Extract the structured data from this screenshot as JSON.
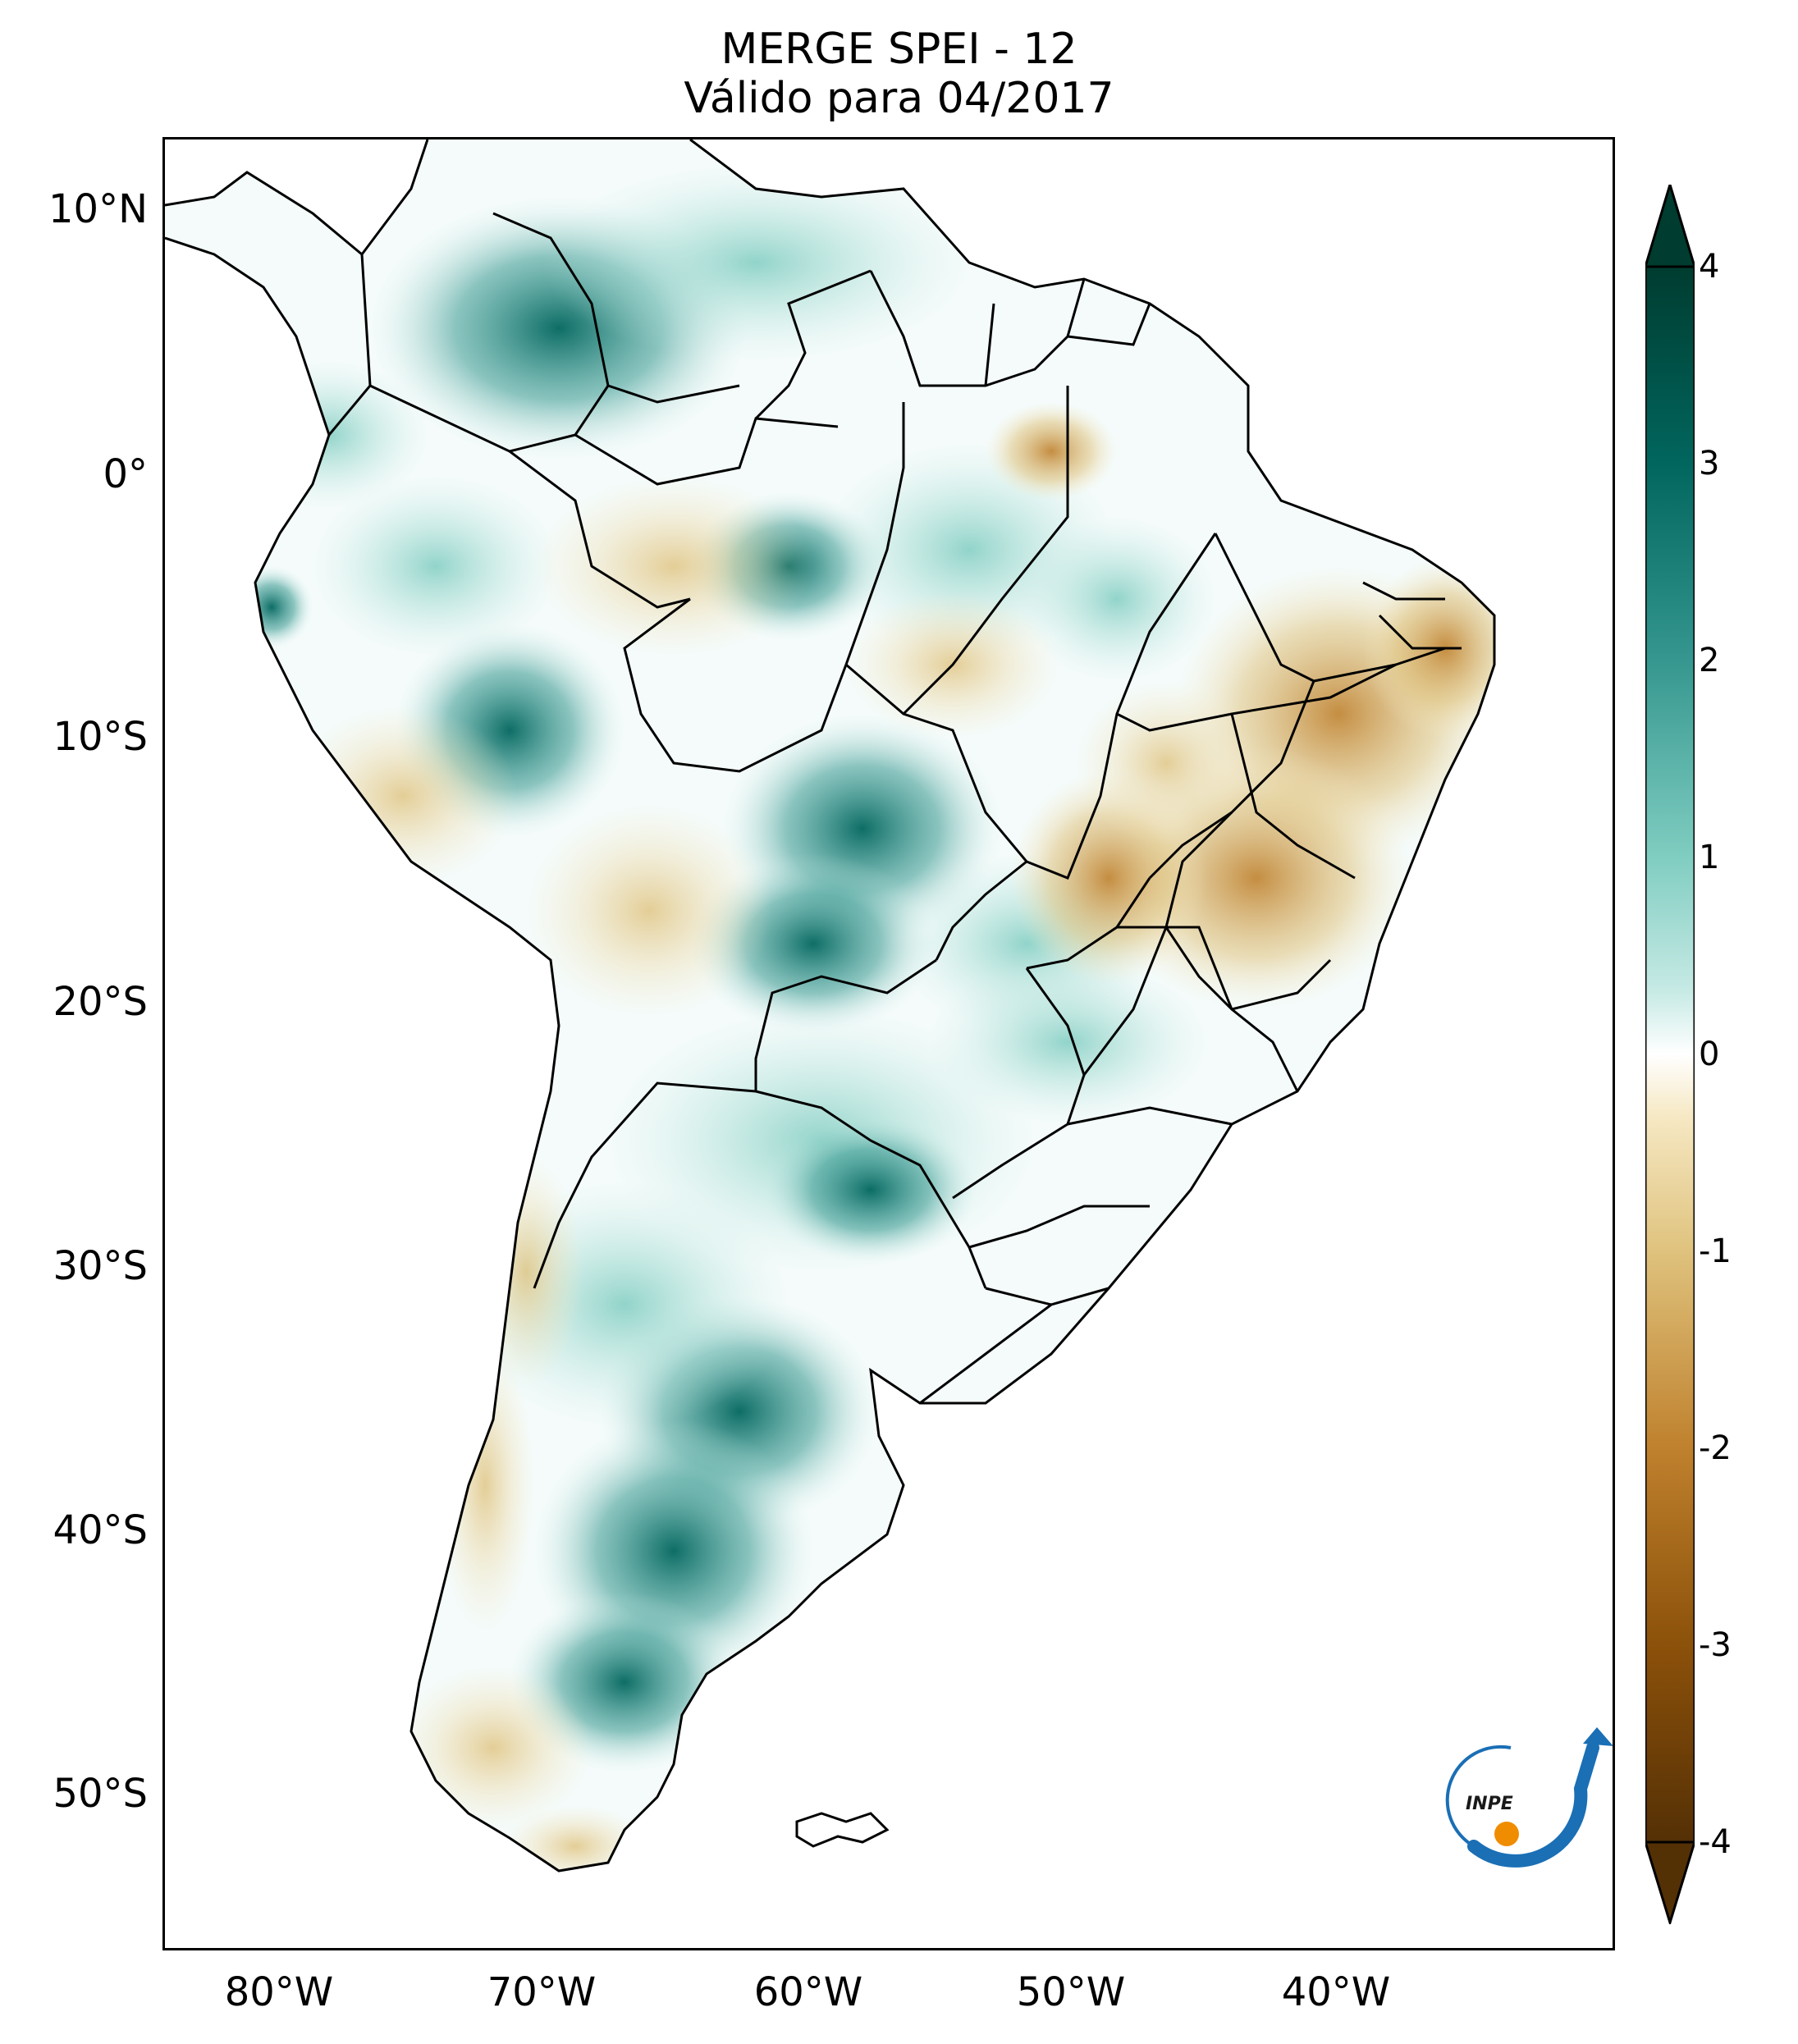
{
  "title": {
    "line1": "MERGE   SPEI - 12",
    "line2": "Válido para 04/2017"
  },
  "axes": {
    "lat_labels": [
      "10°N",
      "0°",
      "10°S",
      "20°S",
      "30°S",
      "40°S",
      "50°S"
    ],
    "lon_labels": [
      "80°W",
      "70°W",
      "60°W",
      "50°W",
      "40°W"
    ]
  },
  "colorbar": {
    "ticks": [
      "4",
      "3",
      "2",
      "1",
      "0",
      "-1",
      "-2",
      "-3",
      "-4"
    ],
    "range": [
      -4,
      4
    ],
    "extend": "both",
    "colors": {
      "dry_extreme": "#543005",
      "dry_strong": "#8c510a",
      "dry": "#bf812d",
      "dry_light": "#dfc27d",
      "dry_faint": "#f6e8c3",
      "neutral": "#ffffff",
      "wet_faint": "#c7eae5",
      "wet_light": "#80cdc1",
      "wet": "#35978f",
      "wet_strong": "#01665e",
      "wet_extreme": "#003c30"
    }
  },
  "logo": {
    "text": "INPE"
  },
  "colors": {
    "border": "#000000",
    "wet_accent": "#35978f",
    "dry_accent": "#bf812d",
    "logo_blue": "#1a6fb5",
    "logo_orange": "#f08c00"
  }
}
